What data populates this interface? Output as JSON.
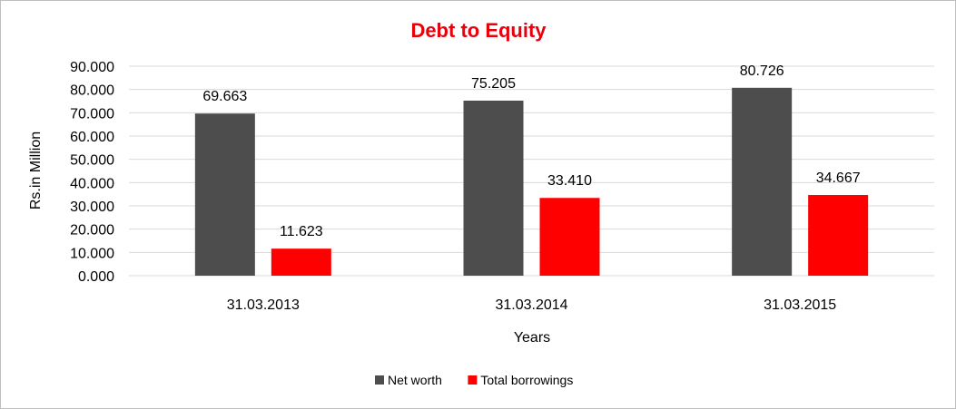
{
  "chart_data": {
    "type": "bar",
    "title": "Debt to Equity",
    "title_color": "#e8000b",
    "xlabel": "Years",
    "ylabel": "Rs.in Million",
    "ylim": [
      0,
      90
    ],
    "yticks": [
      0,
      10,
      20,
      30,
      40,
      50,
      60,
      70,
      80,
      90
    ],
    "ytick_labels": [
      "0.000",
      "10.000",
      "20.000",
      "30.000",
      "40.000",
      "50.000",
      "60.000",
      "70.000",
      "80.000",
      "90.000"
    ],
    "categories": [
      "31.03.2013",
      "31.03.2014",
      "31.03.2015"
    ],
    "series": [
      {
        "name": "Net worth",
        "color": "#4d4d4d",
        "values": [
          69.663,
          75.205,
          80.726
        ],
        "labels": [
          "69.663",
          "75.205",
          "80.726"
        ]
      },
      {
        "name": "Total borrowings",
        "color": "#ff0000",
        "values": [
          11.623,
          33.41,
          34.667
        ],
        "labels": [
          "11.623",
          "33.410",
          "34.667"
        ]
      }
    ],
    "grid": true,
    "legend_position": "bottom"
  }
}
